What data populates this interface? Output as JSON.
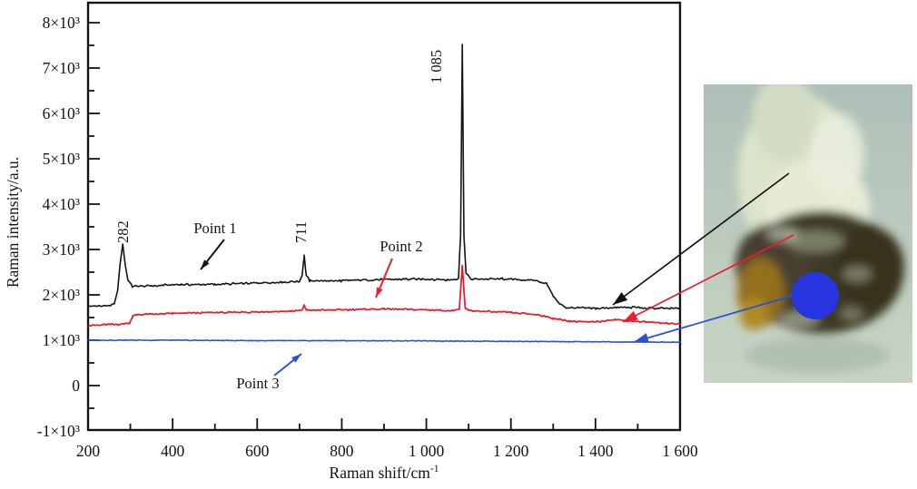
{
  "figure": {
    "kind": "raman-spectra-with-specimen-photo"
  },
  "chart_data": {
    "type": "line",
    "title": "",
    "xlabel": "Raman shift/cm",
    "xlabel_superscript": "-1",
    "ylabel": "Raman intensity/a.u.",
    "xlim": [
      200,
      1600
    ],
    "ylim": [
      -1000,
      8440
    ],
    "grid": false,
    "legend": "none",
    "x_major_ticks": [
      {
        "v": 200,
        "label": "200"
      },
      {
        "v": 400,
        "label": "400"
      },
      {
        "v": 600,
        "label": "600"
      },
      {
        "v": 800,
        "label": "800"
      },
      {
        "v": 1000,
        "label": "1 000"
      },
      {
        "v": 1200,
        "label": "1 200"
      },
      {
        "v": 1400,
        "label": "1 400"
      },
      {
        "v": 1600,
        "label": "1 600"
      }
    ],
    "x_minor_ticks": [
      300,
      500,
      700,
      900,
      1100,
      1300,
      1500
    ],
    "y_major_ticks": [
      {
        "v": 8000,
        "label": "8×10³"
      },
      {
        "v": 7000,
        "label": "7×10³"
      },
      {
        "v": 6000,
        "label": "6×10³"
      },
      {
        "v": 5000,
        "label": "5×10³"
      },
      {
        "v": 4000,
        "label": "4×10³"
      },
      {
        "v": 3000,
        "label": "3×10³"
      },
      {
        "v": 2000,
        "label": "2×10³"
      },
      {
        "v": 1000,
        "label": "1×10³"
      },
      {
        "v": 0,
        "label": "0"
      },
      {
        "v": -1000,
        "label": "-1×10³"
      }
    ],
    "y_minor_ticks": [
      7500,
      6500,
      5500,
      4500,
      3500,
      2500,
      1500,
      500,
      -500
    ],
    "peak_labels": [
      {
        "text": "282",
        "x": 282
      },
      {
        "text": "711",
        "x": 711
      },
      {
        "text": "1 085",
        "x": 1085
      }
    ],
    "series": [
      {
        "name": "Point 1",
        "color": "#141414",
        "noise": 55,
        "anchors": [
          [
            200,
            1750
          ],
          [
            250,
            1760
          ],
          [
            262,
            1800
          ],
          [
            270,
            2100
          ],
          [
            276,
            2700
          ],
          [
            282,
            3120
          ],
          [
            288,
            2650
          ],
          [
            294,
            2330
          ],
          [
            305,
            2180
          ],
          [
            350,
            2200
          ],
          [
            420,
            2230
          ],
          [
            500,
            2230
          ],
          [
            600,
            2260
          ],
          [
            660,
            2280
          ],
          [
            700,
            2300
          ],
          [
            706,
            2420
          ],
          [
            711,
            2860
          ],
          [
            716,
            2430
          ],
          [
            724,
            2310
          ],
          [
            800,
            2310
          ],
          [
            900,
            2340
          ],
          [
            1000,
            2350
          ],
          [
            1050,
            2330
          ],
          [
            1076,
            2360
          ],
          [
            1081,
            3300
          ],
          [
            1085,
            7540
          ],
          [
            1089,
            3300
          ],
          [
            1094,
            2480
          ],
          [
            1105,
            2350
          ],
          [
            1180,
            2350
          ],
          [
            1255,
            2320
          ],
          [
            1285,
            2240
          ],
          [
            1300,
            1980
          ],
          [
            1315,
            1800
          ],
          [
            1330,
            1720
          ],
          [
            1400,
            1700
          ],
          [
            1470,
            1730
          ],
          [
            1540,
            1700
          ],
          [
            1600,
            1700
          ]
        ]
      },
      {
        "name": "Point 2",
        "color": "#ee1c2e",
        "noise": 40,
        "anchors": [
          [
            200,
            1320
          ],
          [
            240,
            1340
          ],
          [
            285,
            1360
          ],
          [
            298,
            1380
          ],
          [
            306,
            1530
          ],
          [
            315,
            1560
          ],
          [
            400,
            1590
          ],
          [
            500,
            1610
          ],
          [
            600,
            1620
          ],
          [
            680,
            1640
          ],
          [
            706,
            1660
          ],
          [
            711,
            1770
          ],
          [
            716,
            1660
          ],
          [
            800,
            1670
          ],
          [
            900,
            1690
          ],
          [
            1000,
            1670
          ],
          [
            1055,
            1650
          ],
          [
            1078,
            1680
          ],
          [
            1085,
            2640
          ],
          [
            1092,
            1700
          ],
          [
            1105,
            1650
          ],
          [
            1200,
            1610
          ],
          [
            1265,
            1560
          ],
          [
            1300,
            1480
          ],
          [
            1340,
            1420
          ],
          [
            1400,
            1400
          ],
          [
            1445,
            1460
          ],
          [
            1470,
            1430
          ],
          [
            1520,
            1400
          ],
          [
            1600,
            1360
          ]
        ]
      },
      {
        "name": "Point 3",
        "color": "#2a50d4",
        "noise": 18,
        "anchors": [
          [
            200,
            1000
          ],
          [
            400,
            1000
          ],
          [
            600,
            990
          ],
          [
            800,
            990
          ],
          [
            1000,
            985
          ],
          [
            1200,
            975
          ],
          [
            1400,
            965
          ],
          [
            1600,
            955
          ]
        ]
      }
    ],
    "point_annotations": [
      {
        "text": "Point 1",
        "text_color": "#141414",
        "arrow_color": "#141414"
      },
      {
        "text": "Point 2",
        "text_color": "#ee1c2e",
        "arrow_color": "#ee1c2e"
      },
      {
        "text": "Point 3",
        "text_color": "#141414",
        "arrow_color": "#2a50d4"
      }
    ]
  },
  "photo": {
    "description": "mineral specimen photograph with sampling spots",
    "marker_color": "#2635de",
    "background_top": "#aec0b8",
    "background_bottom": "#c9d4c4",
    "connector_colors": {
      "point1": "#141414",
      "point2": "#ee1c2e",
      "point3": "#2a50d4"
    }
  }
}
